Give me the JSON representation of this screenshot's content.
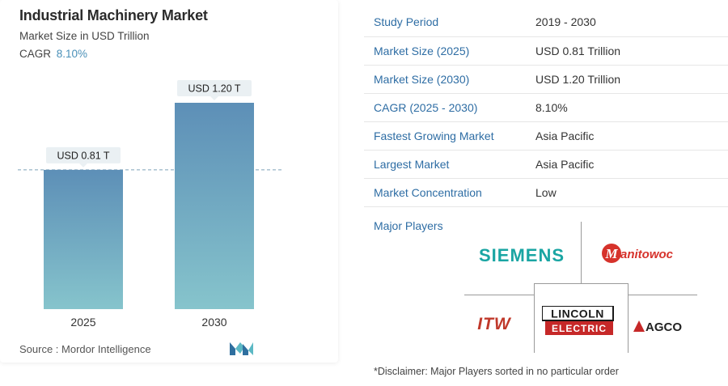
{
  "header": {
    "title": "Industrial Machinery Market",
    "subtitle": "Market Size in USD Trillion",
    "cagr_label": "CAGR",
    "cagr_value": "8.10%"
  },
  "chart_data": {
    "type": "bar",
    "categories": [
      "2025",
      "2030"
    ],
    "values": [
      0.81,
      1.2
    ],
    "data_labels": [
      "USD 0.81 T",
      "USD 1.20 T"
    ],
    "ylim": [
      0,
      1.4
    ],
    "reference_line_value": 0.81,
    "colors": {
      "bar_top": "#5d8fb7",
      "bar_bottom": "#86c4cc",
      "label_bg": "#eaf0f3",
      "dashed_line": "#7ea2b8"
    }
  },
  "footer": {
    "source": "Source :  Mordor Intelligence"
  },
  "stats": [
    {
      "key": "Study Period",
      "value": "2019 - 2030"
    },
    {
      "key": "Market Size (2025)",
      "value": "USD 0.81 Trillion"
    },
    {
      "key": "Market Size (2030)",
      "value": "USD 1.20 Trillion"
    },
    {
      "key": "CAGR (2025 - 2030)",
      "value": "8.10%"
    },
    {
      "key": "Fastest Growing Market",
      "value": "Asia Pacific"
    },
    {
      "key": "Largest Market",
      "value": "Asia Pacific"
    },
    {
      "key": "Market Concentration",
      "value": "Low"
    }
  ],
  "players": {
    "label": "Major Players",
    "logos": {
      "siemens": "SIEMENS",
      "manitowoc": "Manitowoc",
      "itw": "ITW",
      "lincoln_top": "LINCOLN",
      "lincoln_bottom": "ELECTRIC",
      "agco": "AGCO"
    }
  },
  "disclaimer": "*Disclaimer: Major Players sorted in no particular order"
}
